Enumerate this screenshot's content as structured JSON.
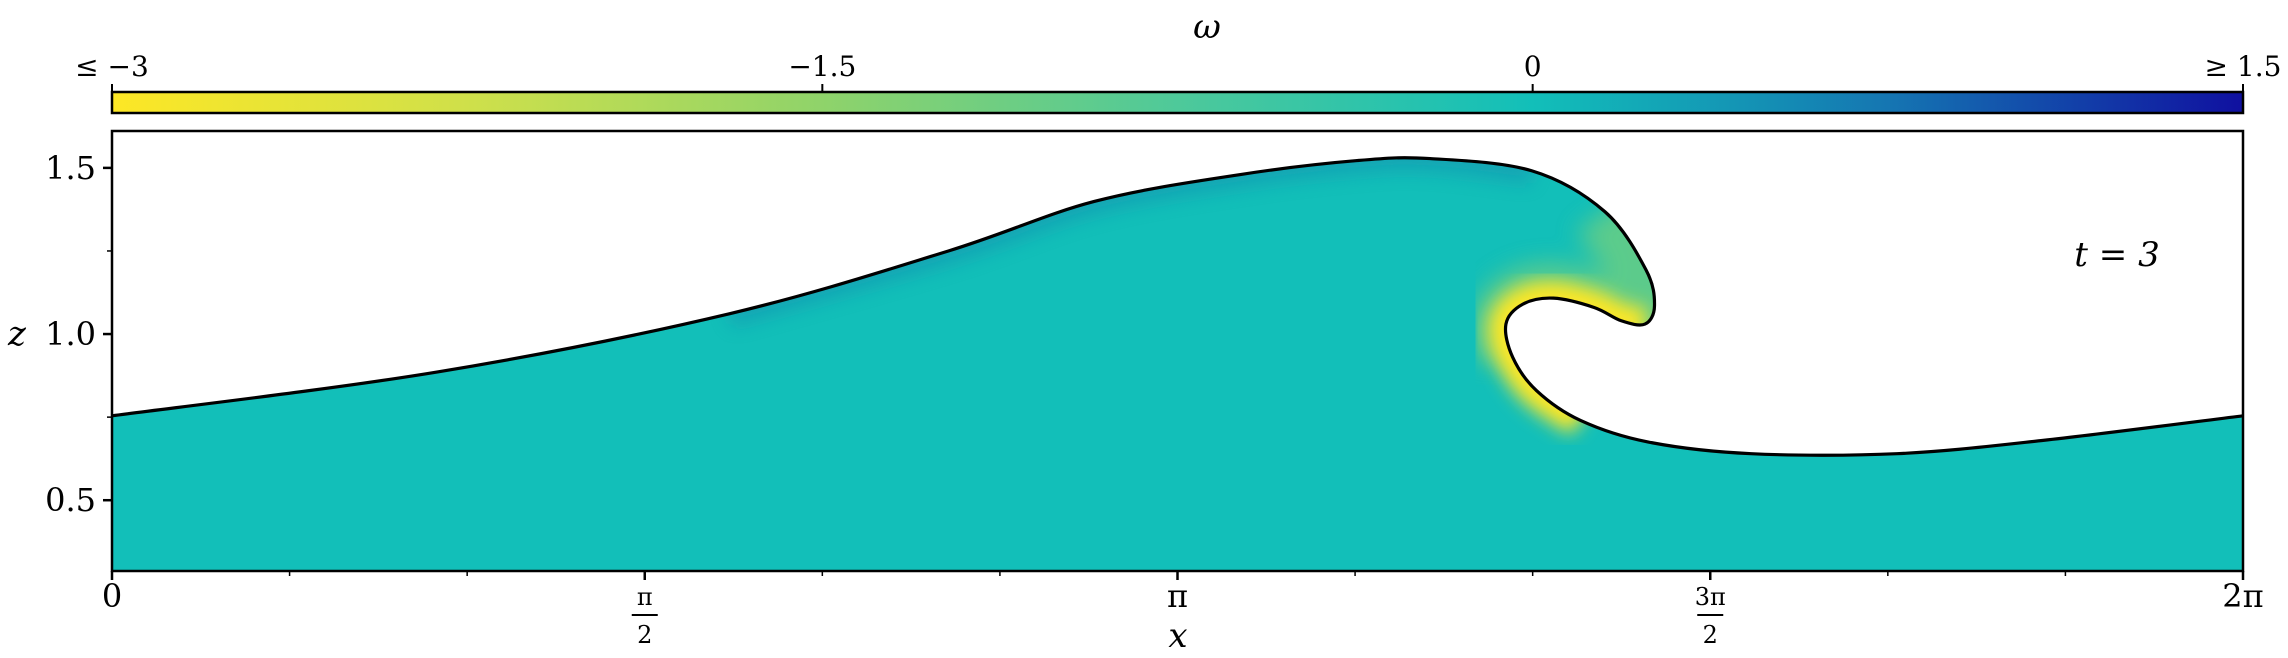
{
  "chart_data": {
    "type": "area",
    "title": "",
    "xlabel": "x",
    "ylabel": "z",
    "xlim": [
      0,
      6.2832
    ],
    "ylim": [
      0.287,
      1.611
    ],
    "grid": false,
    "annotation": "t = 3",
    "x_ticks": [
      {
        "value": 0,
        "label": "0"
      },
      {
        "value": 1.5708,
        "num": "π",
        "den": "2"
      },
      {
        "value": 3.1416,
        "label": "π"
      },
      {
        "value": 4.7124,
        "num": "3π",
        "den": "2"
      },
      {
        "value": 6.2832,
        "label": "2π"
      }
    ],
    "y_ticks": [
      {
        "value": 0.5,
        "label": "0.5"
      },
      {
        "value": 1.0,
        "label": "1.0"
      },
      {
        "value": 1.5,
        "label": "1.5"
      }
    ],
    "colorbar": {
      "label": "ω",
      "range": [
        -3,
        1.5
      ],
      "ticks": [
        {
          "value": -3,
          "label": "≤ −3"
        },
        {
          "value": -1.5,
          "label": "−1.5"
        },
        {
          "value": 0,
          "label": "0"
        },
        {
          "value": 1.5,
          "label": "≥ 1.5"
        }
      ],
      "colors": [
        {
          "value": -3,
          "color": "#fde725"
        },
        {
          "value": -2.25,
          "color": "#cfe04a"
        },
        {
          "value": -1.5,
          "color": "#8fd36a"
        },
        {
          "value": -0.75,
          "color": "#4ec99a"
        },
        {
          "value": 0,
          "color": "#12bfb9"
        },
        {
          "value": 0.75,
          "color": "#1576b2"
        },
        {
          "value": 1.5,
          "color": "#1010a0"
        }
      ]
    },
    "fluid_color": "#12bfb9",
    "surface": {
      "x": [
        0,
        0.96,
        1.82,
        2.466,
        2.896,
        3.327,
        3.671,
        3.886,
        4.187,
        4.402,
        4.523,
        4.548,
        4.52,
        4.45,
        4.37,
        4.25,
        4.16,
        4.11,
        4.13,
        4.2,
        4.33,
        4.53,
        4.833,
        5.263,
        5.694,
        6.2832
      ],
      "z": [
        0.754,
        0.886,
        1.061,
        1.25,
        1.399,
        1.48,
        1.522,
        1.528,
        1.491,
        1.368,
        1.193,
        1.085,
        1.03,
        1.04,
        1.08,
        1.108,
        1.09,
        1.03,
        0.93,
        0.83,
        0.74,
        0.675,
        0.64,
        0.64,
        0.68,
        0.754
      ]
    },
    "vorticity_features": [
      {
        "name": "",
        "omega": -3,
        "location": "underside of overturning jet"
      },
      {
        "name": "",
        "omega": 0.5,
        "location": "near crest surface"
      }
    ]
  }
}
